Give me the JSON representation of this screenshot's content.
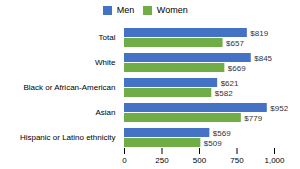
{
  "chart_data": {
    "type": "bar",
    "orientation": "horizontal",
    "categories": [
      "Hispanic or Latino ethnicity",
      "Asian",
      "Black or African-American",
      "White",
      "Total"
    ],
    "series": [
      {
        "name": "Men",
        "color": "#4472C4",
        "values": [
          569,
          952,
          621,
          845,
          819
        ],
        "value_labels": [
          "$569",
          "$952",
          "$621",
          "$845",
          "$819"
        ]
      },
      {
        "name": "Women",
        "color": "#70AD47",
        "values": [
          509,
          779,
          582,
          669,
          657
        ],
        "value_labels": [
          "$509",
          "$779",
          "$582",
          "$669",
          "$657"
        ]
      }
    ],
    "xlim": [
      0,
      1000
    ],
    "xticks": [
      0,
      250,
      500,
      750,
      {
        "value": 1000,
        "label": "1,000"
      }
    ],
    "data_labels": true,
    "legend": "top",
    "grid": false
  }
}
